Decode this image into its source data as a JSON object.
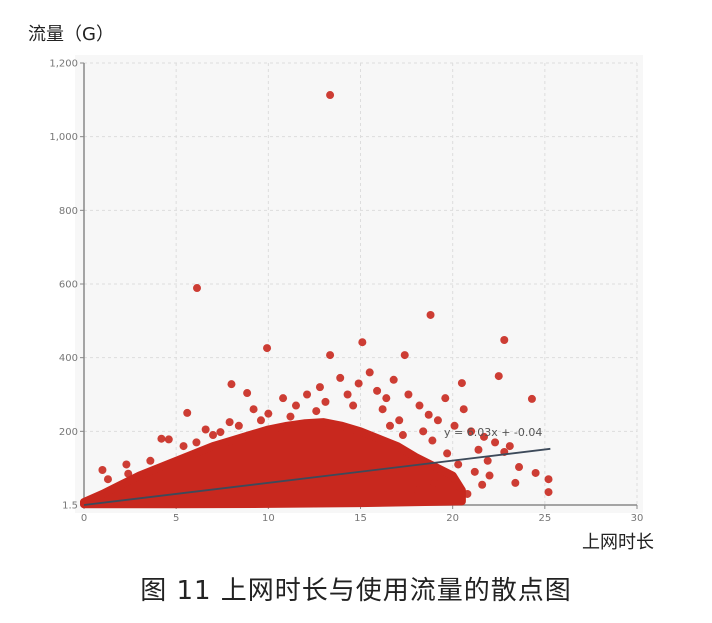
{
  "chart_data": {
    "type": "scatter",
    "ylabel": "流量（G）",
    "xlabel": "上网时长",
    "caption": "图 11   上网时长与使用流量的散点图",
    "xlim": [
      0,
      30
    ],
    "ylim": [
      1.5,
      1200
    ],
    "x_ticks": [
      "0",
      "5",
      "10",
      "15",
      "20",
      "25",
      "30"
    ],
    "y_ticks": [
      "1.5",
      "200",
      "400",
      "600",
      "800",
      "1,000",
      "1,200"
    ],
    "grid": true,
    "point_color": "#c8281e",
    "trendline": {
      "label": "y = 6.03x + -0.04",
      "slope": 6.03,
      "intercept": -0.04,
      "x_range": [
        0,
        25.3
      ],
      "color": "#3d4a5a"
    },
    "dense_envelope_upper": [
      [
        0,
        8
      ],
      [
        1,
        30
      ],
      [
        2,
        55
      ],
      [
        3,
        80
      ],
      [
        4,
        100
      ],
      [
        5,
        120
      ],
      [
        6,
        140
      ],
      [
        7,
        160
      ],
      [
        8,
        175
      ],
      [
        9,
        190
      ],
      [
        10,
        205
      ],
      [
        11,
        215
      ],
      [
        12,
        222
      ],
      [
        13,
        225
      ],
      [
        14,
        215
      ],
      [
        15,
        200
      ],
      [
        16,
        180
      ],
      [
        17,
        160
      ],
      [
        18,
        130
      ],
      [
        19,
        105
      ],
      [
        20,
        80
      ],
      [
        20.5,
        40
      ]
    ],
    "dense_envelope_lower": [
      [
        20.5,
        10
      ],
      [
        15,
        5
      ],
      [
        10,
        3
      ],
      [
        5,
        2
      ],
      [
        0,
        2
      ]
    ],
    "points": [
      [
        13.35,
        1113
      ],
      [
        6.13,
        589
      ],
      [
        18.8,
        516
      ],
      [
        9.93,
        426
      ],
      [
        22.8,
        448
      ],
      [
        15.1,
        442
      ],
      [
        13.35,
        407
      ],
      [
        17.4,
        407
      ],
      [
        5.6,
        250
      ],
      [
        24.3,
        288
      ],
      [
        22.5,
        350
      ],
      [
        20.5,
        331
      ],
      [
        8.0,
        328
      ],
      [
        8.85,
        304
      ],
      [
        25.2,
        70
      ],
      [
        25.2,
        35
      ],
      [
        24.5,
        87
      ],
      [
        23.6,
        103
      ],
      [
        22.8,
        144
      ],
      [
        21.7,
        185
      ],
      [
        1.0,
        95
      ],
      [
        1.3,
        70
      ],
      [
        2.3,
        110
      ],
      [
        2.4,
        85
      ],
      [
        4.2,
        180
      ],
      [
        4.6,
        178
      ],
      [
        3.6,
        120
      ],
      [
        5.4,
        160
      ],
      [
        6.6,
        205
      ],
      [
        7.4,
        198
      ],
      [
        7.9,
        225
      ],
      [
        9.2,
        260
      ],
      [
        10.0,
        248
      ],
      [
        10.8,
        290
      ],
      [
        11.5,
        270
      ],
      [
        12.1,
        300
      ],
      [
        12.8,
        320
      ],
      [
        13.9,
        345
      ],
      [
        14.3,
        300
      ],
      [
        14.9,
        330
      ],
      [
        15.5,
        360
      ],
      [
        15.9,
        310
      ],
      [
        16.4,
        290
      ],
      [
        16.8,
        340
      ],
      [
        17.6,
        300
      ],
      [
        18.2,
        270
      ],
      [
        18.7,
        245
      ],
      [
        19.2,
        230
      ],
      [
        19.6,
        290
      ],
      [
        20.1,
        215
      ],
      [
        20.6,
        260
      ],
      [
        21.0,
        200
      ],
      [
        21.4,
        150
      ],
      [
        21.9,
        120
      ],
      [
        22.3,
        170
      ],
      [
        23.1,
        160
      ],
      [
        23.4,
        60
      ],
      [
        19.7,
        140
      ],
      [
        20.3,
        110
      ],
      [
        21.2,
        90
      ],
      [
        22.0,
        80
      ],
      [
        18.4,
        200
      ],
      [
        17.1,
        230
      ],
      [
        16.2,
        260
      ],
      [
        11.2,
        240
      ],
      [
        12.6,
        255
      ],
      [
        13.1,
        280
      ],
      [
        14.6,
        270
      ],
      [
        9.6,
        230
      ],
      [
        8.4,
        215
      ],
      [
        7.0,
        190
      ],
      [
        6.1,
        170
      ],
      [
        19.0,
        60
      ],
      [
        21.6,
        55
      ],
      [
        20.8,
        30
      ],
      [
        18.1,
        40
      ],
      [
        17.3,
        190
      ],
      [
        18.9,
        175
      ],
      [
        16.6,
        215
      ]
    ]
  }
}
